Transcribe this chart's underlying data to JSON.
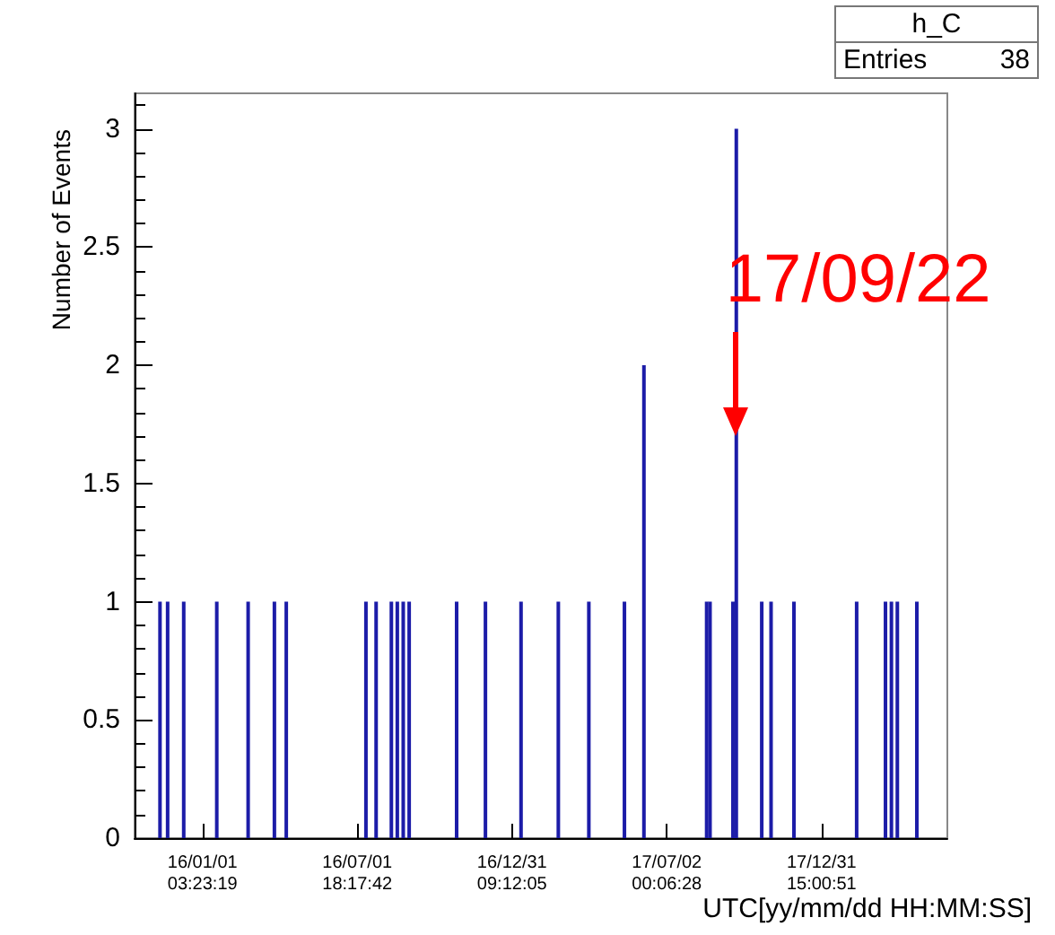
{
  "chart_data": {
    "type": "bar",
    "xlabel": "UTC[yy/mm/dd HH:MM:SS]",
    "ylabel": "Number of Events",
    "x": [
      "2015-11-12",
      "2015-11-21",
      "2015-12-10",
      "2016-01-18",
      "2016-02-24",
      "2016-03-26",
      "2016-04-09",
      "2016-07-12",
      "2016-07-24",
      "2016-08-11",
      "2016-08-18",
      "2016-08-25",
      "2016-09-01",
      "2016-10-27",
      "2016-11-30",
      "2017-01-11",
      "2017-02-24",
      "2017-04-01",
      "2017-05-13",
      "2017-06-05",
      "2017-08-18",
      "2017-08-22",
      "2017-09-18",
      "2017-09-22",
      "2017-10-22",
      "2017-11-02",
      "2017-11-29",
      "2018-02-11",
      "2018-03-17",
      "2018-03-24",
      "2018-03-31",
      "2018-04-23"
    ],
    "values": [
      1,
      1,
      1,
      1,
      1,
      1,
      1,
      1,
      1,
      1,
      1,
      1,
      1,
      1,
      1,
      1,
      1,
      1,
      1,
      2,
      1,
      1,
      1,
      3,
      1,
      1,
      1,
      1,
      1,
      1,
      1,
      1
    ],
    "color": "#1c1ca8",
    "xlim": [
      "2015-10-13",
      "2018-05-29"
    ],
    "xticks": [
      {
        "value": "2016-01-01T03:23",
        "label": "16/01/01\n03:23:19"
      },
      {
        "value": "2016-07-01T18:17",
        "label": "16/07/01\n18:17:42"
      },
      {
        "value": "2016-12-31T09:12",
        "label": "16/12/31\n09:12:05"
      },
      {
        "value": "2017-07-02T00:06",
        "label": "17/07/02\n00:06:28"
      },
      {
        "value": "2017-12-31T15:00",
        "label": "17/12/31\n15:00:51"
      }
    ],
    "ylim": [
      0,
      3.15
    ],
    "yticks": [
      0,
      0.5,
      1,
      1.5,
      2,
      2.5,
      3
    ],
    "grid": false,
    "annotations": [
      "h_C",
      "Entries",
      "38",
      {
        "text": "17/09/22",
        "x": "2017-09-22",
        "y": 1.7
      }
    ]
  }
}
